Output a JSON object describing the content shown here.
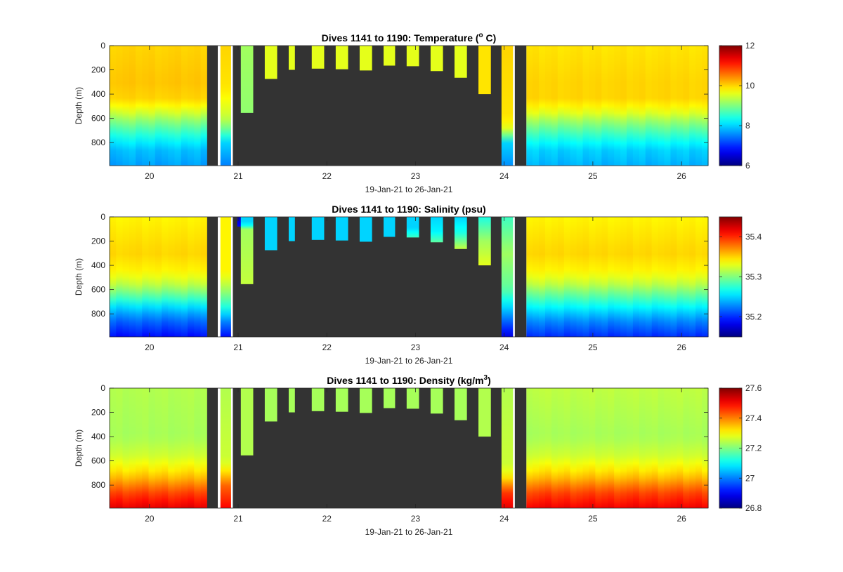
{
  "chart_data": [
    {
      "type": "heatmap",
      "title": "Dives 1141 to 1190: Temperature (",
      "title_sup": "o",
      "title_end": " C)",
      "xlabel": "19-Jan-21 to 26-Jan-21",
      "ylabel": "Depth (m)",
      "xlim": [
        19.55,
        26.3
      ],
      "ylim": [
        0,
        990
      ],
      "y_reversed": true,
      "xticks": [
        20,
        21,
        22,
        23,
        24,
        25,
        26
      ],
      "yticks": [
        0,
        200,
        400,
        600,
        800
      ],
      "colorbar": {
        "min": 6,
        "max": 12,
        "ticks": [
          6,
          8,
          10,
          12
        ],
        "colormap": "jet"
      },
      "gaps": [
        [
          20.65,
          20.77
        ],
        [
          20.94,
          24.0
        ],
        [
          24.12,
          24.25
        ]
      ],
      "profiles": [
        {
          "x": [
            20.8,
            20.92
          ],
          "max_depth": 990,
          "profile": [
            [
              0,
              10.0
            ],
            [
              350,
              9.9
            ],
            [
              600,
              9.4
            ],
            [
              700,
              8.8
            ],
            [
              800,
              8.0
            ],
            [
              990,
              7.5
            ]
          ]
        },
        {
          "x": [
            21.03,
            21.17
          ],
          "max_depth": 555,
          "profile": [
            [
              0,
              9.2
            ],
            [
              555,
              9.1
            ]
          ]
        },
        {
          "x": [
            21.3,
            21.44
          ],
          "max_depth": 275,
          "profile": [
            [
              0,
              9.6
            ],
            [
              275,
              9.6
            ]
          ]
        },
        {
          "x": [
            21.57,
            21.64
          ],
          "max_depth": 200,
          "profile": [
            [
              0,
              9.6
            ],
            [
              200,
              9.6
            ]
          ]
        },
        {
          "x": [
            21.83,
            21.97
          ],
          "max_depth": 190,
          "profile": [
            [
              0,
              9.6
            ],
            [
              190,
              9.6
            ]
          ]
        },
        {
          "x": [
            22.1,
            22.24
          ],
          "max_depth": 195,
          "profile": [
            [
              0,
              9.6
            ],
            [
              195,
              9.6
            ]
          ]
        },
        {
          "x": [
            22.37,
            22.51
          ],
          "max_depth": 205,
          "profile": [
            [
              0,
              9.6
            ],
            [
              205,
              9.6
            ]
          ]
        },
        {
          "x": [
            22.64,
            22.77
          ],
          "max_depth": 165,
          "profile": [
            [
              0,
              9.6
            ],
            [
              165,
              9.6
            ]
          ]
        },
        {
          "x": [
            22.9,
            23.04
          ],
          "max_depth": 170,
          "profile": [
            [
              0,
              9.6
            ],
            [
              170,
              9.6
            ]
          ]
        },
        {
          "x": [
            23.17,
            23.31
          ],
          "max_depth": 210,
          "profile": [
            [
              0,
              9.6
            ],
            [
              210,
              9.6
            ]
          ]
        },
        {
          "x": [
            23.44,
            23.58
          ],
          "max_depth": 265,
          "profile": [
            [
              0,
              9.6
            ],
            [
              265,
              9.6
            ]
          ]
        },
        {
          "x": [
            23.71,
            23.85
          ],
          "max_depth": 400,
          "profile": [
            [
              0,
              9.9
            ],
            [
              400,
              9.9
            ]
          ]
        },
        {
          "x": [
            23.97,
            24.1
          ],
          "max_depth": 990,
          "profile": [
            [
              0,
              10.0
            ],
            [
              600,
              9.9
            ],
            [
              700,
              9.5
            ],
            [
              800,
              8.0
            ],
            [
              990,
              7.6
            ]
          ]
        }
      ],
      "blocks": [
        {
          "x": [
            19.55,
            20.65
          ],
          "profile": [
            [
              0,
              10.0
            ],
            [
              300,
              10.1
            ],
            [
              450,
              10.0
            ],
            [
              550,
              9.5
            ],
            [
              650,
              8.9
            ],
            [
              750,
              8.4
            ],
            [
              850,
              7.9
            ],
            [
              990,
              7.7
            ]
          ]
        },
        {
          "x": [
            24.25,
            26.3
          ],
          "profile": [
            [
              0,
              9.9
            ],
            [
              300,
              10.0
            ],
            [
              450,
              10.0
            ],
            [
              550,
              9.6
            ],
            [
              650,
              9.0
            ],
            [
              750,
              8.5
            ],
            [
              850,
              8.0
            ],
            [
              990,
              7.8
            ]
          ]
        }
      ]
    },
    {
      "type": "heatmap",
      "title": "Dives 1141 to 1190: Salinity (psu)",
      "title_sup": "",
      "title_end": "",
      "xlabel": "19-Jan-21 to 26-Jan-21",
      "ylabel": "Depth (m)",
      "xlim": [
        19.55,
        26.3
      ],
      "ylim": [
        0,
        990
      ],
      "y_reversed": true,
      "xticks": [
        20,
        21,
        22,
        23,
        24,
        25,
        26
      ],
      "yticks": [
        0,
        200,
        400,
        600,
        800
      ],
      "colorbar": {
        "min": 35.15,
        "max": 35.45,
        "ticks": [
          35.2,
          35.3,
          35.4
        ],
        "colormap": "jet"
      },
      "gaps": [
        [
          20.65,
          20.77
        ],
        [
          20.94,
          24.0
        ],
        [
          24.12,
          24.25
        ]
      ],
      "profiles": [
        {
          "x": [
            20.8,
            20.92
          ],
          "max_depth": 990,
          "profile": [
            [
              0,
              35.34
            ],
            [
              450,
              35.34
            ],
            [
              600,
              35.31
            ],
            [
              750,
              35.27
            ],
            [
              850,
              35.23
            ],
            [
              990,
              35.19
            ]
          ]
        },
        {
          "x": [
            20.99,
            21.06
          ],
          "max_depth": 80,
          "profile": [
            [
              0,
              35.17
            ],
            [
              80,
              35.19
            ]
          ]
        },
        {
          "x": [
            21.03,
            21.17
          ],
          "max_depth": 555,
          "profile": [
            [
              0,
              35.25
            ],
            [
              60,
              35.25
            ],
            [
              100,
              35.31
            ],
            [
              555,
              35.32
            ]
          ]
        },
        {
          "x": [
            21.3,
            21.44
          ],
          "max_depth": 275,
          "profile": [
            [
              0,
              35.25
            ],
            [
              275,
              35.25
            ]
          ]
        },
        {
          "x": [
            21.57,
            21.64
          ],
          "max_depth": 200,
          "profile": [
            [
              0,
              35.25
            ],
            [
              200,
              35.25
            ]
          ]
        },
        {
          "x": [
            21.83,
            21.97
          ],
          "max_depth": 190,
          "profile": [
            [
              0,
              35.25
            ],
            [
              190,
              35.25
            ]
          ]
        },
        {
          "x": [
            22.1,
            22.24
          ],
          "max_depth": 195,
          "profile": [
            [
              0,
              35.25
            ],
            [
              195,
              35.25
            ]
          ]
        },
        {
          "x": [
            22.37,
            22.51
          ],
          "max_depth": 205,
          "profile": [
            [
              0,
              35.25
            ],
            [
              205,
              35.25
            ]
          ]
        },
        {
          "x": [
            22.64,
            22.77
          ],
          "max_depth": 165,
          "profile": [
            [
              0,
              35.25
            ],
            [
              165,
              35.25
            ]
          ]
        },
        {
          "x": [
            22.9,
            23.04
          ],
          "max_depth": 170,
          "profile": [
            [
              0,
              35.25
            ],
            [
              90,
              35.25
            ],
            [
              170,
              35.28
            ]
          ]
        },
        {
          "x": [
            23.17,
            23.31
          ],
          "max_depth": 210,
          "profile": [
            [
              0,
              35.25
            ],
            [
              120,
              35.26
            ],
            [
              210,
              35.29
            ]
          ]
        },
        {
          "x": [
            23.44,
            23.58
          ],
          "max_depth": 265,
          "profile": [
            [
              0,
              35.25
            ],
            [
              130,
              35.27
            ],
            [
              265,
              35.32
            ]
          ]
        },
        {
          "x": [
            23.71,
            23.85
          ],
          "max_depth": 400,
          "profile": [
            [
              0,
              35.27
            ],
            [
              200,
              35.31
            ],
            [
              400,
              35.33
            ]
          ]
        },
        {
          "x": [
            23.97,
            24.1
          ],
          "max_depth": 990,
          "profile": [
            [
              0,
              35.28
            ],
            [
              300,
              35.31
            ],
            [
              600,
              35.29
            ],
            [
              750,
              35.25
            ],
            [
              850,
              35.22
            ],
            [
              990,
              35.18
            ]
          ]
        }
      ],
      "blocks": [
        {
          "x": [
            19.55,
            20.65
          ],
          "profile": [
            [
              0,
              35.34
            ],
            [
              300,
              35.35
            ],
            [
              450,
              35.34
            ],
            [
              550,
              35.32
            ],
            [
              650,
              35.29
            ],
            [
              750,
              35.25
            ],
            [
              850,
              35.22
            ],
            [
              990,
              35.19
            ]
          ]
        },
        {
          "x": [
            24.25,
            26.3
          ],
          "profile": [
            [
              0,
              35.34
            ],
            [
              300,
              35.35
            ],
            [
              450,
              35.34
            ],
            [
              550,
              35.32
            ],
            [
              650,
              35.29
            ],
            [
              750,
              35.26
            ],
            [
              850,
              35.23
            ],
            [
              990,
              35.2
            ]
          ]
        }
      ]
    },
    {
      "type": "heatmap",
      "title": "Dives 1141 to 1190: Density (kg/m",
      "title_sup": "3",
      "title_end": ")",
      "xlabel": "19-Jan-21 to 26-Jan-21",
      "ylabel": "Depth (m)",
      "xlim": [
        19.55,
        26.3
      ],
      "ylim": [
        0,
        990
      ],
      "y_reversed": true,
      "xticks": [
        20,
        21,
        22,
        23,
        24,
        25,
        26
      ],
      "yticks": [
        0,
        200,
        400,
        600,
        800
      ],
      "colorbar": {
        "min": 26.8,
        "max": 27.6,
        "ticks": [
          26.8,
          27,
          27.2,
          27.4,
          27.6
        ],
        "colormap": "jet"
      },
      "gaps": [
        [
          20.65,
          20.77
        ],
        [
          20.94,
          24.0
        ],
        [
          24.12,
          24.25
        ]
      ],
      "profiles": [
        {
          "x": [
            20.8,
            20.92
          ],
          "max_depth": 990,
          "profile": [
            [
              0,
              27.24
            ],
            [
              600,
              27.26
            ],
            [
              700,
              27.33
            ],
            [
              800,
              27.42
            ],
            [
              990,
              27.5
            ]
          ]
        },
        {
          "x": [
            21.03,
            21.17
          ],
          "max_depth": 555,
          "profile": [
            [
              0,
              27.24
            ],
            [
              555,
              27.24
            ]
          ]
        },
        {
          "x": [
            21.3,
            21.44
          ],
          "max_depth": 275,
          "profile": [
            [
              0,
              27.23
            ],
            [
              275,
              27.23
            ]
          ]
        },
        {
          "x": [
            21.57,
            21.64
          ],
          "max_depth": 200,
          "profile": [
            [
              0,
              27.23
            ],
            [
              200,
              27.23
            ]
          ]
        },
        {
          "x": [
            21.83,
            21.97
          ],
          "max_depth": 190,
          "profile": [
            [
              0,
              27.23
            ],
            [
              190,
              27.23
            ]
          ]
        },
        {
          "x": [
            22.1,
            22.24
          ],
          "max_depth": 195,
          "profile": [
            [
              0,
              27.23
            ],
            [
              195,
              27.23
            ]
          ]
        },
        {
          "x": [
            22.37,
            22.51
          ],
          "max_depth": 205,
          "profile": [
            [
              0,
              27.23
            ],
            [
              205,
              27.23
            ]
          ]
        },
        {
          "x": [
            22.64,
            22.77
          ],
          "max_depth": 165,
          "profile": [
            [
              0,
              27.23
            ],
            [
              165,
              27.23
            ]
          ]
        },
        {
          "x": [
            22.9,
            23.04
          ],
          "max_depth": 170,
          "profile": [
            [
              0,
              27.23
            ],
            [
              170,
              27.23
            ]
          ]
        },
        {
          "x": [
            23.17,
            23.31
          ],
          "max_depth": 210,
          "profile": [
            [
              0,
              27.23
            ],
            [
              210,
              27.23
            ]
          ]
        },
        {
          "x": [
            23.44,
            23.58
          ],
          "max_depth": 265,
          "profile": [
            [
              0,
              27.23
            ],
            [
              265,
              27.23
            ]
          ]
        },
        {
          "x": [
            23.71,
            23.85
          ],
          "max_depth": 400,
          "profile": [
            [
              0,
              27.24
            ],
            [
              400,
              27.24
            ]
          ]
        },
        {
          "x": [
            23.97,
            24.1
          ],
          "max_depth": 990,
          "profile": [
            [
              0,
              27.24
            ],
            [
              650,
              27.26
            ],
            [
              750,
              27.33
            ],
            [
              850,
              27.45
            ],
            [
              990,
              27.52
            ]
          ]
        }
      ],
      "blocks": [
        {
          "x": [
            19.55,
            20.65
          ],
          "profile": [
            [
              0,
              27.24
            ],
            [
              400,
              27.23
            ],
            [
              550,
              27.26
            ],
            [
              650,
              27.3
            ],
            [
              750,
              27.36
            ],
            [
              850,
              27.44
            ],
            [
              990,
              27.52
            ]
          ]
        },
        {
          "x": [
            24.25,
            26.3
          ],
          "profile": [
            [
              0,
              27.25
            ],
            [
              400,
              27.23
            ],
            [
              550,
              27.26
            ],
            [
              650,
              27.3
            ],
            [
              750,
              27.36
            ],
            [
              850,
              27.44
            ],
            [
              990,
              27.51
            ]
          ]
        }
      ]
    }
  ]
}
